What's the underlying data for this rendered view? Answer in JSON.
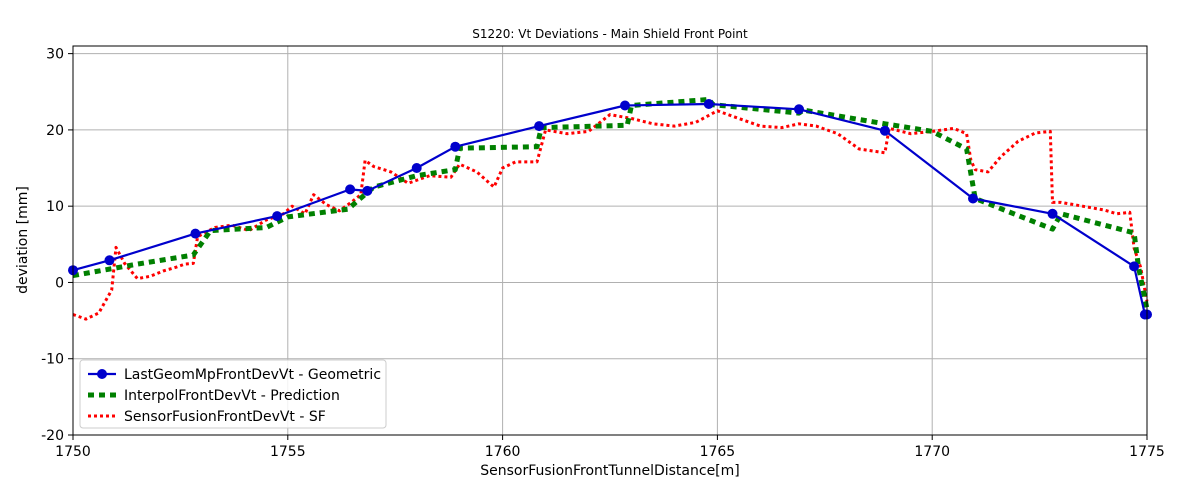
{
  "chart_data": {
    "type": "line",
    "title": "S1220: Vt Deviations - Main Shield Front Point",
    "xlabel": "SensorFusionFrontTunnelDistance[m]",
    "ylabel": "deviation [mm]",
    "xlim": [
      1750,
      1775
    ],
    "ylim": [
      -20,
      31
    ],
    "xticks": [
      1750,
      1755,
      1760,
      1765,
      1770,
      1775
    ],
    "yticks": [
      -20,
      -10,
      0,
      10,
      20,
      30
    ],
    "grid": true,
    "legend_position": "lower-left",
    "series": [
      {
        "name": "LastGeomMpFrontDevVt - Geometric",
        "color": "#0000cc",
        "style": "solid-markers",
        "x": [
          1750.0,
          1750.85,
          1752.85,
          1754.75,
          1756.45,
          1756.85,
          1758.0,
          1758.9,
          1760.85,
          1762.85,
          1764.8,
          1766.9,
          1768.9,
          1770.95,
          1772.8,
          1774.7,
          1774.95,
          1775.0
        ],
        "y": [
          1.6,
          2.9,
          6.4,
          8.7,
          12.2,
          12.0,
          15.0,
          17.8,
          20.5,
          23.2,
          23.4,
          22.7,
          19.9,
          11.0,
          9.0,
          2.1,
          -4.2,
          -4.2
        ]
      },
      {
        "name": "InterpolFrontDevVt - Prediction",
        "color": "#008000",
        "style": "dashed",
        "x": [
          1750.0,
          1751.5,
          1752.8,
          1753.2,
          1754.5,
          1755.0,
          1756.4,
          1757.0,
          1758.0,
          1758.9,
          1759.0,
          1760.8,
          1760.9,
          1762.9,
          1763.0,
          1764.8,
          1764.9,
          1766.9,
          1767.0,
          1768.9,
          1770.0,
          1770.8,
          1771.0,
          1772.8,
          1773.0,
          1774.7,
          1774.8,
          1775.0
        ],
        "y": [
          0.9,
          2.4,
          3.6,
          6.8,
          7.2,
          8.6,
          9.6,
          12.5,
          14.0,
          14.8,
          17.6,
          17.8,
          20.3,
          20.6,
          23.2,
          24.0,
          23.3,
          22.2,
          22.6,
          20.8,
          19.8,
          17.5,
          11.0,
          7.0,
          9.0,
          6.5,
          2.1,
          -3.5
        ]
      },
      {
        "name": "SensorFusionFrontDevVt - SF",
        "color": "#ff0000",
        "style": "dotted",
        "x": [
          1750.0,
          1750.3,
          1750.6,
          1750.75,
          1750.9,
          1751.0,
          1751.2,
          1751.5,
          1751.8,
          1752.1,
          1752.4,
          1752.6,
          1752.8,
          1752.9,
          1753.3,
          1753.7,
          1754.1,
          1754.5,
          1754.9,
          1755.1,
          1755.4,
          1755.6,
          1755.9,
          1756.2,
          1756.5,
          1756.7,
          1756.8,
          1757.0,
          1757.4,
          1757.8,
          1758.3,
          1758.8,
          1759.0,
          1759.4,
          1759.8,
          1760.0,
          1760.3,
          1760.8,
          1761.0,
          1761.5,
          1762.0,
          1762.5,
          1763.0,
          1763.5,
          1764.0,
          1764.5,
          1765.0,
          1765.5,
          1766.0,
          1766.5,
          1766.9,
          1767.3,
          1767.8,
          1768.3,
          1768.9,
          1769.0,
          1769.5,
          1770.0,
          1770.5,
          1770.8,
          1770.9,
          1771.0,
          1771.3,
          1771.6,
          1772.0,
          1772.4,
          1772.75,
          1772.8,
          1773.0,
          1773.5,
          1774.0,
          1774.3,
          1774.6,
          1774.7,
          1774.85,
          1775.0
        ],
        "y": [
          -4.2,
          -4.8,
          -4.0,
          -2.5,
          -1.0,
          4.6,
          2.5,
          0.5,
          0.8,
          1.5,
          2.0,
          2.4,
          2.5,
          6.0,
          7.2,
          7.5,
          6.8,
          8.2,
          9.0,
          10.0,
          9.0,
          11.5,
          10.2,
          9.4,
          10.6,
          11.5,
          16.0,
          15.2,
          14.5,
          13.0,
          14.0,
          13.8,
          15.5,
          14.5,
          12.5,
          15.0,
          15.8,
          15.8,
          20.0,
          19.5,
          19.8,
          22.0,
          21.5,
          20.8,
          20.5,
          21.0,
          22.5,
          21.5,
          20.5,
          20.3,
          20.8,
          20.5,
          19.5,
          17.5,
          17.0,
          20.2,
          19.5,
          19.8,
          20.2,
          19.5,
          16.0,
          14.8,
          14.5,
          16.5,
          18.5,
          19.6,
          19.8,
          10.5,
          10.5,
          10.0,
          9.5,
          9.0,
          9.2,
          4.5,
          2.0,
          -2.5
        ]
      }
    ]
  }
}
